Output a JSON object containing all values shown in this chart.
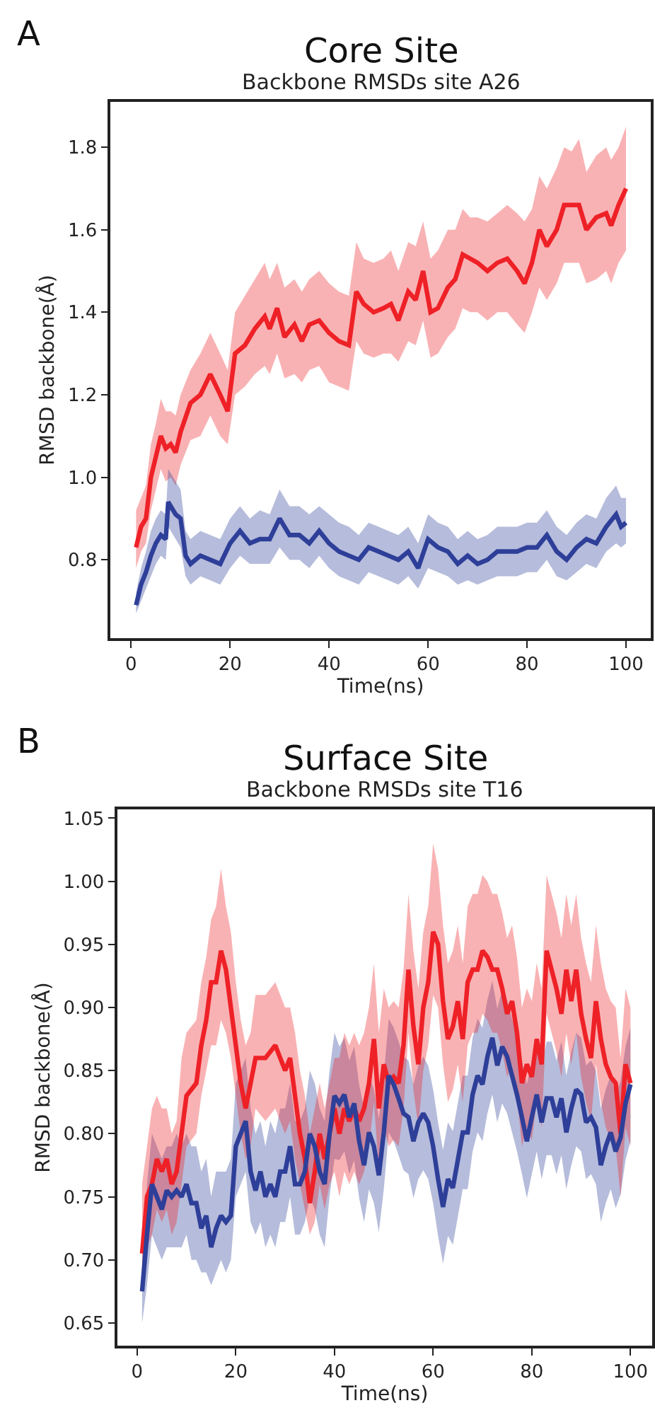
{
  "chart_data": [
    {
      "type": "line",
      "title": "Core Site",
      "subtitle": "Backbone RMSDs site A26",
      "annotations": [
        "A"
      ],
      "xlabel": "Time(ns)",
      "ylabel": "RMSD backbone(Å)",
      "xlim": [
        -4.2,
        105
      ],
      "ylim": [
        0.61,
        1.91
      ],
      "xticks": [
        0,
        20,
        40,
        60,
        80,
        100
      ],
      "yticks": [
        {
          "value": 0.8,
          "label": "0.8"
        },
        {
          "value": 1.0,
          "label": "1.0"
        },
        {
          "value": 1.2,
          "label": "1.2"
        },
        {
          "value": 1.4,
          "label": "1.4"
        },
        {
          "value": 1.6,
          "label": "1.6"
        },
        {
          "value": 1.8,
          "label": "1.8"
        }
      ],
      "grid": false,
      "line_style": "solid",
      "series": [
        {
          "color": "#ee2127",
          "x": [
            1,
            2,
            3,
            4,
            5,
            6,
            7,
            8,
            9,
            10,
            12,
            14,
            16,
            18,
            19.5,
            21,
            23,
            25,
            27,
            28,
            29.5,
            31,
            33,
            34.5,
            36,
            38,
            40,
            42,
            44,
            45.5,
            47,
            49,
            51,
            52.5,
            54,
            56,
            57.5,
            59,
            60.5,
            62,
            64,
            65.5,
            67,
            68.5,
            70,
            72,
            74,
            76,
            78,
            79.5,
            81,
            82.5,
            84,
            86,
            87.5,
            89,
            90.5,
            92,
            94,
            96,
            97,
            98.5,
            100
          ],
          "values": [
            0.83,
            0.88,
            0.9,
            1.0,
            1.05,
            1.1,
            1.07,
            1.08,
            1.06,
            1.11,
            1.18,
            1.2,
            1.25,
            1.2,
            1.16,
            1.3,
            1.32,
            1.36,
            1.39,
            1.36,
            1.41,
            1.34,
            1.37,
            1.33,
            1.37,
            1.38,
            1.35,
            1.33,
            1.32,
            1.45,
            1.42,
            1.4,
            1.41,
            1.42,
            1.38,
            1.45,
            1.43,
            1.5,
            1.4,
            1.41,
            1.46,
            1.48,
            1.54,
            1.53,
            1.52,
            1.5,
            1.52,
            1.53,
            1.5,
            1.47,
            1.52,
            1.6,
            1.56,
            1.6,
            1.66,
            1.66,
            1.66,
            1.6,
            1.63,
            1.64,
            1.61,
            1.66,
            1.7
          ],
          "lower": [
            0.78,
            0.82,
            0.84,
            0.92,
            0.97,
            1.02,
            0.99,
            1.0,
            0.98,
            1.03,
            1.09,
            1.1,
            1.15,
            1.1,
            1.08,
            1.2,
            1.22,
            1.25,
            1.27,
            1.25,
            1.3,
            1.24,
            1.25,
            1.23,
            1.26,
            1.27,
            1.23,
            1.22,
            1.21,
            1.33,
            1.3,
            1.29,
            1.3,
            1.3,
            1.28,
            1.33,
            1.32,
            1.38,
            1.29,
            1.3,
            1.34,
            1.36,
            1.41,
            1.4,
            1.4,
            1.38,
            1.4,
            1.4,
            1.37,
            1.35,
            1.4,
            1.46,
            1.43,
            1.47,
            1.52,
            1.52,
            1.52,
            1.47,
            1.48,
            1.5,
            1.47,
            1.52,
            1.55
          ],
          "upper": [
            0.92,
            0.95,
            0.98,
            1.08,
            1.13,
            1.19,
            1.16,
            1.16,
            1.15,
            1.2,
            1.26,
            1.3,
            1.35,
            1.3,
            1.26,
            1.4,
            1.44,
            1.48,
            1.52,
            1.48,
            1.52,
            1.46,
            1.48,
            1.45,
            1.48,
            1.5,
            1.47,
            1.45,
            1.44,
            1.57,
            1.53,
            1.52,
            1.53,
            1.55,
            1.5,
            1.57,
            1.56,
            1.62,
            1.53,
            1.55,
            1.6,
            1.6,
            1.65,
            1.63,
            1.63,
            1.62,
            1.64,
            1.66,
            1.64,
            1.62,
            1.65,
            1.73,
            1.7,
            1.75,
            1.8,
            1.79,
            1.82,
            1.74,
            1.78,
            1.8,
            1.77,
            1.8,
            1.85
          ]
        },
        {
          "color": "#2e3f99",
          "x": [
            1,
            2,
            3,
            4,
            5,
            6,
            7,
            7.5,
            9,
            10,
            11,
            12,
            14,
            16,
            18,
            20,
            22,
            24,
            26,
            28,
            30,
            32,
            34,
            36,
            38,
            40,
            42,
            44,
            46,
            48,
            50,
            52,
            54,
            56,
            58,
            60,
            62,
            64,
            66,
            68,
            70,
            72,
            74,
            76,
            78,
            80,
            82,
            84,
            86,
            88,
            90,
            92,
            94,
            96,
            98,
            99,
            100
          ],
          "values": [
            0.69,
            0.74,
            0.77,
            0.81,
            0.84,
            0.86,
            0.85,
            0.94,
            0.91,
            0.9,
            0.81,
            0.79,
            0.81,
            0.8,
            0.79,
            0.84,
            0.87,
            0.84,
            0.85,
            0.85,
            0.9,
            0.86,
            0.86,
            0.84,
            0.87,
            0.84,
            0.82,
            0.81,
            0.8,
            0.83,
            0.82,
            0.81,
            0.8,
            0.82,
            0.78,
            0.85,
            0.83,
            0.82,
            0.79,
            0.81,
            0.79,
            0.8,
            0.82,
            0.82,
            0.82,
            0.83,
            0.83,
            0.86,
            0.82,
            0.8,
            0.83,
            0.85,
            0.84,
            0.88,
            0.91,
            0.88,
            0.89
          ],
          "lower": [
            0.67,
            0.7,
            0.73,
            0.76,
            0.79,
            0.81,
            0.8,
            0.88,
            0.85,
            0.83,
            0.76,
            0.74,
            0.76,
            0.75,
            0.74,
            0.78,
            0.81,
            0.79,
            0.79,
            0.79,
            0.83,
            0.8,
            0.8,
            0.78,
            0.81,
            0.78,
            0.76,
            0.75,
            0.74,
            0.77,
            0.76,
            0.75,
            0.74,
            0.76,
            0.73,
            0.78,
            0.77,
            0.76,
            0.74,
            0.75,
            0.74,
            0.75,
            0.76,
            0.76,
            0.76,
            0.77,
            0.77,
            0.8,
            0.76,
            0.75,
            0.77,
            0.79,
            0.78,
            0.82,
            0.84,
            0.83,
            0.84
          ],
          "upper": [
            0.72,
            0.78,
            0.82,
            0.87,
            0.9,
            0.92,
            0.91,
            1.02,
            0.99,
            0.97,
            0.87,
            0.85,
            0.87,
            0.86,
            0.85,
            0.9,
            0.93,
            0.9,
            0.92,
            0.91,
            0.97,
            0.93,
            0.93,
            0.91,
            0.93,
            0.91,
            0.89,
            0.88,
            0.86,
            0.89,
            0.88,
            0.87,
            0.86,
            0.88,
            0.84,
            0.91,
            0.89,
            0.88,
            0.85,
            0.87,
            0.85,
            0.86,
            0.88,
            0.88,
            0.88,
            0.89,
            0.89,
            0.92,
            0.88,
            0.86,
            0.89,
            0.91,
            0.9,
            0.95,
            0.98,
            0.95,
            0.95
          ]
        }
      ]
    },
    {
      "type": "line",
      "title": "Surface Site",
      "subtitle": "Backbone RMSDs site T16",
      "annotations": [
        "B"
      ],
      "xlabel": "Time(ns)",
      "ylabel": "RMSD backbone(Å)",
      "xlim": [
        -4,
        104.4
      ],
      "ylim": [
        0.632,
        1.057
      ],
      "xticks": [
        0,
        20,
        40,
        60,
        80,
        100
      ],
      "yticks": [
        {
          "value": 0.65,
          "label": "0.65"
        },
        {
          "value": 0.7,
          "label": "0.70"
        },
        {
          "value": 0.75,
          "label": "0.75"
        },
        {
          "value": 0.8,
          "label": "0.80"
        },
        {
          "value": 0.85,
          "label": "0.85"
        },
        {
          "value": 0.9,
          "label": "0.90"
        },
        {
          "value": 0.95,
          "label": "0.95"
        },
        {
          "value": 1.0,
          "label": "1.00"
        },
        {
          "value": 1.05,
          "label": "1.05"
        }
      ],
      "grid": false,
      "line_style": "solid",
      "series": [
        {
          "color": "#2e3f99",
          "x": [
            1,
            2,
            3,
            4,
            5,
            6,
            7,
            8,
            9,
            10,
            11,
            12,
            13,
            14,
            15,
            16,
            17,
            18,
            19,
            20,
            21,
            22,
            23,
            24,
            25,
            26,
            27,
            28,
            29,
            30,
            31,
            32,
            33,
            34,
            35,
            36,
            37,
            38,
            39,
            40,
            41,
            42,
            43,
            44,
            45,
            46,
            47,
            48,
            49,
            50,
            51,
            52,
            53,
            54,
            55,
            56,
            57,
            58,
            59,
            60,
            61,
            62,
            63,
            64,
            65,
            66,
            67,
            68,
            69,
            70,
            71,
            72,
            73,
            74,
            75,
            76,
            77,
            78,
            79,
            80,
            81,
            82,
            83,
            84,
            85,
            86,
            87,
            88,
            89,
            90,
            91,
            92,
            93,
            94,
            95,
            96,
            97,
            98,
            99,
            100
          ],
          "values": [
            0.675,
            0.72,
            0.76,
            0.75,
            0.74,
            0.755,
            0.75,
            0.755,
            0.75,
            0.76,
            0.745,
            0.745,
            0.725,
            0.735,
            0.71,
            0.725,
            0.735,
            0.73,
            0.735,
            0.79,
            0.8,
            0.81,
            0.77,
            0.755,
            0.77,
            0.75,
            0.76,
            0.75,
            0.77,
            0.77,
            0.79,
            0.76,
            0.76,
            0.77,
            0.8,
            0.79,
            0.77,
            0.76,
            0.8,
            0.83,
            0.824,
            0.831,
            0.813,
            0.824,
            0.794,
            0.775,
            0.801,
            0.79,
            0.767,
            0.801,
            0.846,
            0.839,
            0.828,
            0.816,
            0.813,
            0.794,
            0.809,
            0.816,
            0.809,
            0.79,
            0.764,
            0.742,
            0.764,
            0.757,
            0.779,
            0.801,
            0.801,
            0.831,
            0.846,
            0.839,
            0.861,
            0.876,
            0.854,
            0.869,
            0.861,
            0.846,
            0.831,
            0.813,
            0.794,
            0.813,
            0.831,
            0.809,
            0.828,
            0.828,
            0.813,
            0.828,
            0.801,
            0.82,
            0.835,
            0.831,
            0.809,
            0.813,
            0.805,
            0.775,
            0.79,
            0.801,
            0.786,
            0.797,
            0.824,
            0.839
          ],
          "lower": [
            0.65,
            0.68,
            0.72,
            0.71,
            0.7,
            0.71,
            0.71,
            0.71,
            0.71,
            0.72,
            0.7,
            0.7,
            0.69,
            0.69,
            0.68,
            0.69,
            0.7,
            0.69,
            0.7,
            0.75,
            0.76,
            0.77,
            0.73,
            0.72,
            0.73,
            0.71,
            0.72,
            0.71,
            0.73,
            0.73,
            0.75,
            0.72,
            0.72,
            0.73,
            0.75,
            0.74,
            0.72,
            0.71,
            0.75,
            0.78,
            0.779,
            0.786,
            0.768,
            0.779,
            0.749,
            0.73,
            0.756,
            0.745,
            0.722,
            0.756,
            0.801,
            0.794,
            0.783,
            0.771,
            0.768,
            0.749,
            0.764,
            0.771,
            0.764,
            0.745,
            0.719,
            0.697,
            0.719,
            0.712,
            0.734,
            0.756,
            0.756,
            0.786,
            0.801,
            0.794,
            0.816,
            0.831,
            0.809,
            0.824,
            0.816,
            0.801,
            0.786,
            0.768,
            0.749,
            0.768,
            0.786,
            0.764,
            0.783,
            0.783,
            0.768,
            0.783,
            0.756,
            0.775,
            0.79,
            0.786,
            0.764,
            0.768,
            0.76,
            0.73,
            0.745,
            0.756,
            0.741,
            0.752,
            0.779,
            0.794
          ],
          "upper": [
            0.7,
            0.76,
            0.8,
            0.79,
            0.78,
            0.79,
            0.79,
            0.8,
            0.79,
            0.8,
            0.79,
            0.79,
            0.77,
            0.78,
            0.75,
            0.77,
            0.77,
            0.77,
            0.78,
            0.84,
            0.85,
            0.86,
            0.82,
            0.8,
            0.81,
            0.79,
            0.81,
            0.8,
            0.82,
            0.82,
            0.84,
            0.81,
            0.81,
            0.82,
            0.85,
            0.84,
            0.82,
            0.81,
            0.85,
            0.88,
            0.869,
            0.876,
            0.858,
            0.869,
            0.839,
            0.82,
            0.846,
            0.835,
            0.812,
            0.846,
            0.891,
            0.884,
            0.873,
            0.861,
            0.858,
            0.839,
            0.854,
            0.861,
            0.854,
            0.835,
            0.809,
            0.787,
            0.809,
            0.802,
            0.824,
            0.846,
            0.846,
            0.876,
            0.891,
            0.884,
            0.906,
            0.921,
            0.899,
            0.914,
            0.906,
            0.891,
            0.876,
            0.858,
            0.839,
            0.858,
            0.876,
            0.854,
            0.873,
            0.873,
            0.858,
            0.873,
            0.846,
            0.865,
            0.88,
            0.876,
            0.854,
            0.858,
            0.85,
            0.82,
            0.835,
            0.846,
            0.831,
            0.842,
            0.869,
            0.884
          ]
        },
        {
          "color": "#ee2127",
          "x": [
            1,
            2,
            3,
            4,
            5,
            6,
            7,
            8,
            9,
            10,
            12,
            13,
            14,
            15,
            16,
            17,
            18,
            19,
            20,
            21,
            22,
            23,
            24,
            26,
            28,
            29,
            30,
            31,
            32,
            33,
            34,
            35,
            36,
            37,
            38,
            39,
            40,
            41,
            42,
            43,
            44,
            45,
            46,
            47,
            48,
            49,
            50,
            51,
            52,
            53,
            54,
            55,
            56,
            57,
            58,
            59,
            60,
            61,
            62,
            63,
            64,
            65,
            66,
            67,
            68,
            69,
            70,
            71,
            72,
            73,
            74,
            75,
            76,
            77,
            78,
            79,
            80,
            81,
            82,
            83,
            84,
            85,
            86,
            87,
            88,
            89,
            90,
            91,
            92,
            93,
            94,
            95,
            96,
            97,
            98,
            99,
            100
          ],
          "values": [
            0.705,
            0.75,
            0.76,
            0.78,
            0.77,
            0.78,
            0.76,
            0.77,
            0.8,
            0.83,
            0.84,
            0.87,
            0.89,
            0.92,
            0.92,
            0.945,
            0.93,
            0.9,
            0.87,
            0.84,
            0.82,
            0.84,
            0.86,
            0.86,
            0.87,
            0.86,
            0.85,
            0.86,
            0.83,
            0.8,
            0.78,
            0.745,
            0.77,
            0.8,
            0.78,
            0.8,
            0.82,
            0.8,
            0.82,
            0.81,
            0.82,
            0.81,
            0.82,
            0.84,
            0.875,
            0.82,
            0.855,
            0.84,
            0.845,
            0.84,
            0.87,
            0.93,
            0.885,
            0.855,
            0.9,
            0.92,
            0.96,
            0.95,
            0.905,
            0.875,
            0.885,
            0.905,
            0.875,
            0.92,
            0.93,
            0.93,
            0.945,
            0.94,
            0.93,
            0.93,
            0.915,
            0.895,
            0.905,
            0.88,
            0.84,
            0.855,
            0.845,
            0.875,
            0.855,
            0.945,
            0.93,
            0.915,
            0.895,
            0.93,
            0.905,
            0.93,
            0.895,
            0.875,
            0.86,
            0.905,
            0.875,
            0.855,
            0.845,
            0.84,
            0.8,
            0.855,
            0.84
          ],
          "lower": [
            0.68,
            0.71,
            0.72,
            0.74,
            0.73,
            0.74,
            0.72,
            0.73,
            0.76,
            0.79,
            0.8,
            0.83,
            0.85,
            0.87,
            0.87,
            0.89,
            0.88,
            0.86,
            0.83,
            0.8,
            0.78,
            0.79,
            0.82,
            0.81,
            0.82,
            0.81,
            0.8,
            0.81,
            0.78,
            0.76,
            0.74,
            0.72,
            0.73,
            0.76,
            0.74,
            0.76,
            0.77,
            0.75,
            0.77,
            0.76,
            0.77,
            0.76,
            0.77,
            0.79,
            0.825,
            0.77,
            0.805,
            0.79,
            0.795,
            0.79,
            0.82,
            0.88,
            0.835,
            0.805,
            0.85,
            0.87,
            0.91,
            0.9,
            0.855,
            0.825,
            0.835,
            0.855,
            0.825,
            0.87,
            0.88,
            0.88,
            0.895,
            0.89,
            0.88,
            0.88,
            0.865,
            0.845,
            0.855,
            0.83,
            0.79,
            0.805,
            0.795,
            0.825,
            0.805,
            0.895,
            0.88,
            0.865,
            0.845,
            0.88,
            0.855,
            0.88,
            0.845,
            0.825,
            0.81,
            0.855,
            0.825,
            0.805,
            0.795,
            0.79,
            0.75,
            0.805,
            0.79
          ],
          "upper": [
            0.76,
            0.79,
            0.82,
            0.83,
            0.82,
            0.82,
            0.8,
            0.81,
            0.86,
            0.88,
            0.89,
            0.92,
            0.94,
            0.97,
            0.98,
            1.01,
            0.98,
            0.96,
            0.92,
            0.89,
            0.87,
            0.88,
            0.91,
            0.91,
            0.92,
            0.91,
            0.9,
            0.9,
            0.88,
            0.85,
            0.83,
            0.8,
            0.82,
            0.84,
            0.82,
            0.84,
            0.86,
            0.86,
            0.88,
            0.87,
            0.88,
            0.87,
            0.88,
            0.9,
            0.935,
            0.88,
            0.915,
            0.9,
            0.905,
            0.9,
            0.93,
            0.99,
            0.945,
            0.915,
            0.96,
            0.98,
            1.03,
            1.01,
            0.965,
            0.935,
            0.945,
            0.965,
            0.935,
            0.98,
            0.99,
            0.99,
            1.005,
            1.0,
            0.99,
            0.99,
            0.975,
            0.955,
            0.965,
            0.94,
            0.9,
            0.915,
            0.905,
            0.935,
            0.915,
            1.005,
            0.99,
            0.975,
            0.955,
            0.99,
            0.965,
            0.99,
            0.955,
            0.935,
            0.92,
            0.965,
            0.935,
            0.915,
            0.905,
            0.9,
            0.86,
            0.915,
            0.9
          ]
        }
      ]
    }
  ]
}
